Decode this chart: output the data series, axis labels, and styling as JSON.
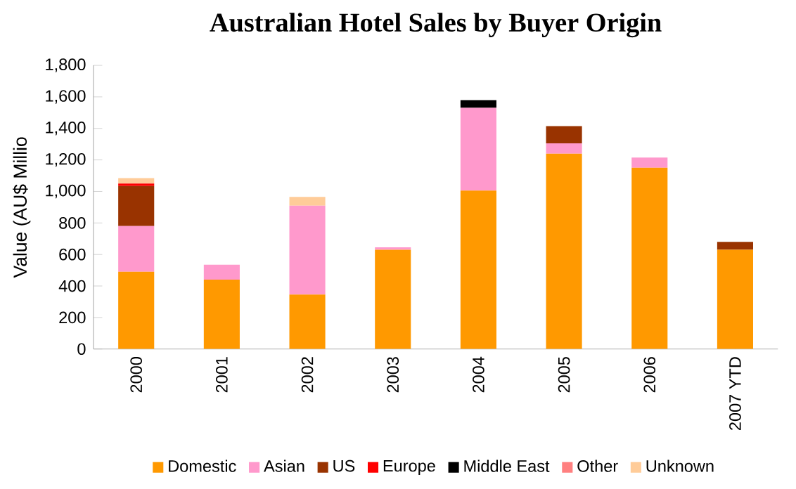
{
  "chart_data": {
    "type": "bar",
    "stacked": true,
    "title": "Australian Hotel Sales by Buyer Origin",
    "ylabel": "Value (AU$ Millio",
    "categories": [
      "2000",
      "2001",
      "2002",
      "2003",
      "2004",
      "2005",
      "2006",
      "2007 YTD"
    ],
    "series": [
      {
        "name": "Domestic",
        "color": "#ff9900",
        "values": [
          490,
          440,
          345,
          630,
          1005,
          1240,
          1150,
          630
        ]
      },
      {
        "name": "Asian",
        "color": "#ff99cc",
        "values": [
          290,
          95,
          565,
          15,
          525,
          65,
          65,
          null
        ]
      },
      {
        "name": "US",
        "color": "#993300",
        "values": [
          255,
          null,
          null,
          null,
          null,
          110,
          null,
          50
        ]
      },
      {
        "name": "Europe",
        "color": "#ff0000",
        "values": [
          15,
          null,
          null,
          null,
          null,
          null,
          null,
          null
        ]
      },
      {
        "name": "Middle East",
        "color": "#000000",
        "values": [
          null,
          null,
          null,
          null,
          50,
          null,
          null,
          null
        ]
      },
      {
        "name": "Other",
        "color": "#ff8080",
        "values": [
          null,
          null,
          null,
          null,
          null,
          null,
          null,
          null
        ]
      },
      {
        "name": "Unknown",
        "color": "#ffcc99",
        "values": [
          35,
          null,
          55,
          null,
          null,
          null,
          null,
          null
        ]
      }
    ],
    "ylim": [
      0,
      1800
    ],
    "yticks": [
      0,
      200,
      400,
      600,
      800,
      {
        "value": 1000,
        "label": "1,000"
      },
      {
        "value": 1200,
        "label": "1,200"
      },
      {
        "value": 1400,
        "label": "1,400"
      },
      {
        "value": 1600,
        "label": "1,600"
      },
      {
        "value": 1800,
        "label": "1,800"
      }
    ],
    "grid": false,
    "legend": "bottom"
  }
}
